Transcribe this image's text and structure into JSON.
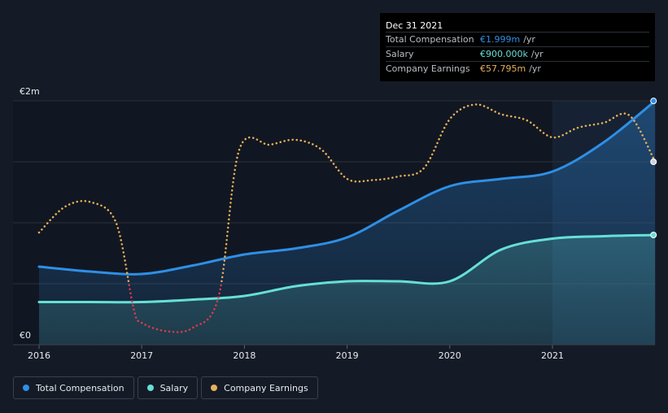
{
  "chart_data": {
    "type": "area",
    "x_ticks": [
      "2016",
      "2017",
      "2018",
      "2019",
      "2020",
      "2021"
    ],
    "y_tick_labels": {
      "top": "€2m",
      "bottom": "€0"
    },
    "ylim": [
      0,
      2.0
    ],
    "series": [
      {
        "name": "Total Compensation",
        "key": "total",
        "color": "#2e8fe6",
        "points": [
          [
            2016.0,
            0.64
          ],
          [
            2016.5,
            0.6
          ],
          [
            2017.0,
            0.58
          ],
          [
            2017.5,
            0.65
          ],
          [
            2018.0,
            0.74
          ],
          [
            2018.5,
            0.79
          ],
          [
            2019.0,
            0.88
          ],
          [
            2019.5,
            1.1
          ],
          [
            2020.0,
            1.3
          ],
          [
            2020.5,
            1.36
          ],
          [
            2021.0,
            1.42
          ],
          [
            2021.5,
            1.66
          ],
          [
            2022.0,
            1.999
          ]
        ]
      },
      {
        "name": "Salary",
        "key": "salary",
        "color": "#66e0d6",
        "points": [
          [
            2016.0,
            0.35
          ],
          [
            2016.5,
            0.35
          ],
          [
            2017.0,
            0.35
          ],
          [
            2017.5,
            0.37
          ],
          [
            2018.0,
            0.4
          ],
          [
            2018.5,
            0.48
          ],
          [
            2019.0,
            0.52
          ],
          [
            2019.5,
            0.52
          ],
          [
            2020.0,
            0.52
          ],
          [
            2020.5,
            0.78
          ],
          [
            2021.0,
            0.87
          ],
          [
            2021.5,
            0.89
          ],
          [
            2022.0,
            0.9
          ]
        ]
      },
      {
        "name": "Company Earnings",
        "key": "earnings",
        "color": "#e8b05a",
        "negative_color": "#e0394b",
        "threshold": 0.5,
        "points": [
          [
            2016.0,
            0.92
          ],
          [
            2016.25,
            1.13
          ],
          [
            2016.5,
            1.17
          ],
          [
            2016.75,
            1.0
          ],
          [
            2016.92,
            0.3
          ],
          [
            2017.0,
            0.18
          ],
          [
            2017.25,
            0.11
          ],
          [
            2017.5,
            0.14
          ],
          [
            2017.75,
            0.4
          ],
          [
            2017.95,
            1.6
          ],
          [
            2018.25,
            1.64
          ],
          [
            2018.5,
            1.68
          ],
          [
            2018.75,
            1.6
          ],
          [
            2019.0,
            1.36
          ],
          [
            2019.25,
            1.35
          ],
          [
            2019.5,
            1.38
          ],
          [
            2019.75,
            1.45
          ],
          [
            2020.0,
            1.85
          ],
          [
            2020.25,
            1.97
          ],
          [
            2020.5,
            1.89
          ],
          [
            2020.75,
            1.84
          ],
          [
            2021.0,
            1.7
          ],
          [
            2021.25,
            1.78
          ],
          [
            2021.5,
            1.82
          ],
          [
            2021.75,
            1.88
          ],
          [
            2022.0,
            1.5
          ]
        ]
      }
    ],
    "highlight_start": 2021.0
  },
  "tooltip": {
    "date": "Dec 31 2021",
    "rows": [
      {
        "label": "Total Compensation",
        "value": "€1.999m",
        "unit": "/yr",
        "color": "#2e8fe6"
      },
      {
        "label": "Salary",
        "value": "€900.000k",
        "unit": "/yr",
        "color": "#66e0d6"
      },
      {
        "label": "Company Earnings",
        "value": "€57.795m",
        "unit": "/yr",
        "color": "#e8b05a"
      }
    ]
  },
  "legend": [
    {
      "label": "Total Compensation",
      "color": "#2e8fe6"
    },
    {
      "label": "Salary",
      "color": "#66e0d6"
    },
    {
      "label": "Company Earnings",
      "color": "#e8b05a"
    }
  ]
}
